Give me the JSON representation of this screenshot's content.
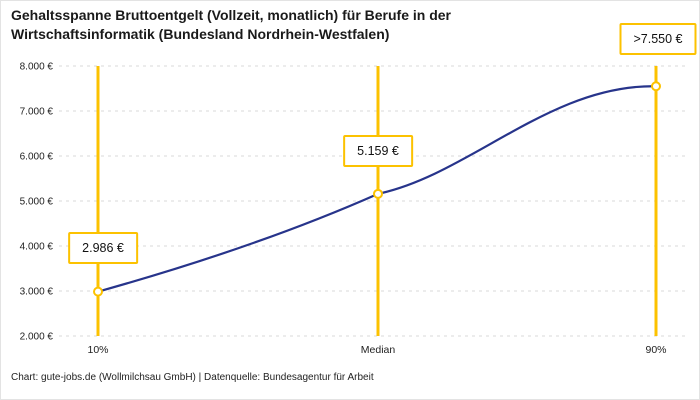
{
  "colors": {
    "accent_gold": "#FCC200",
    "line_blue": "#27348B",
    "grid_gray": "#D8D8D8",
    "text_dark": "#1A1A1A",
    "tick_text": "#222222"
  },
  "chart_data": {
    "type": "line",
    "title": "Gehaltsspanne Bruttoentgelt (Vollzeit, monatlich) für Berufe in der Wirtschaftsinformatik (Bundesland Nordrhein-Westfalen)",
    "categories": [
      "10%",
      "Median",
      "90%"
    ],
    "values": [
      2986,
      5159,
      7550
    ],
    "point_labels": [
      "2.986 €",
      "5.159 €",
      ">7.550 €"
    ],
    "ylim": [
      2000,
      8000
    ],
    "yticks": [
      2000,
      3000,
      4000,
      5000,
      6000,
      7000,
      8000
    ],
    "ytick_labels": [
      "2.000 €",
      "3.000 €",
      "4.000 €",
      "5.000 €",
      "6.000 €",
      "7.000 €",
      "8.000 €"
    ],
    "xlabel": "",
    "ylabel": "",
    "grid": "horizontal-dashed",
    "legend": "none",
    "source": "Chart: gute-jobs.de (Wollmilchsau GmbH) | Datenquelle: Bundesagentur für Arbeit"
  }
}
